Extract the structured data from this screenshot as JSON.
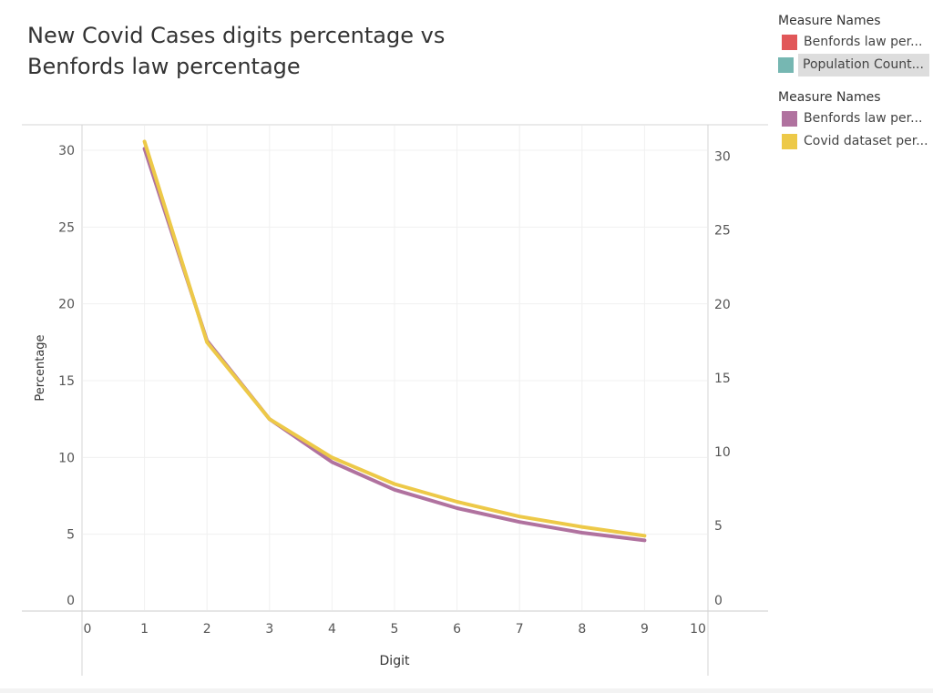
{
  "chart_data": {
    "type": "line",
    "title": "New Covid Cases digits percentage vs Benfords law percentage",
    "title_lines": [
      "New Covid Cases digits percentage vs",
      "Benfords law percentage"
    ],
    "xlabel": "Digit",
    "ylabel": "Percentage",
    "x": [
      1,
      2,
      3,
      4,
      5,
      6,
      7,
      8,
      9
    ],
    "xlim": [
      0,
      10
    ],
    "x_ticks": [
      "0",
      "1",
      "2",
      "3",
      "4",
      "5",
      "6",
      "7",
      "8",
      "9",
      "10"
    ],
    "ylim_left": [
      0,
      30
    ],
    "y_ticks_left": [
      "0",
      "5",
      "10",
      "15",
      "20",
      "25",
      "30"
    ],
    "ylim_right": [
      0,
      30
    ],
    "y_ticks_right": [
      "0",
      "5",
      "10",
      "15",
      "20",
      "25",
      "30"
    ],
    "grid": true,
    "legend_position": "right",
    "series": [
      {
        "name": "Benfords law per...",
        "axis": "left",
        "color": "#b0729f",
        "values": [
          30.1,
          17.6,
          12.5,
          9.7,
          7.9,
          6.7,
          5.8,
          5.1,
          4.6
        ]
      },
      {
        "name": "Covid dataset per...",
        "axis": "right",
        "color": "#edc948",
        "values": [
          31.0,
          17.4,
          12.2,
          9.6,
          7.8,
          6.6,
          5.6,
          4.9,
          4.3
        ]
      }
    ]
  },
  "legends": [
    {
      "title": "Measure Names",
      "items": [
        {
          "label": "Benfords law per...",
          "color": "#e15759",
          "highlighted": false
        },
        {
          "label": "Population Count...",
          "color": "#76b7b2",
          "highlighted": true
        }
      ]
    },
    {
      "title": "Measure Names",
      "items": [
        {
          "label": "Benfords law per...",
          "color": "#b0729f",
          "highlighted": false
        },
        {
          "label": "Covid dataset per...",
          "color": "#edc948",
          "highlighted": false
        }
      ]
    }
  ]
}
